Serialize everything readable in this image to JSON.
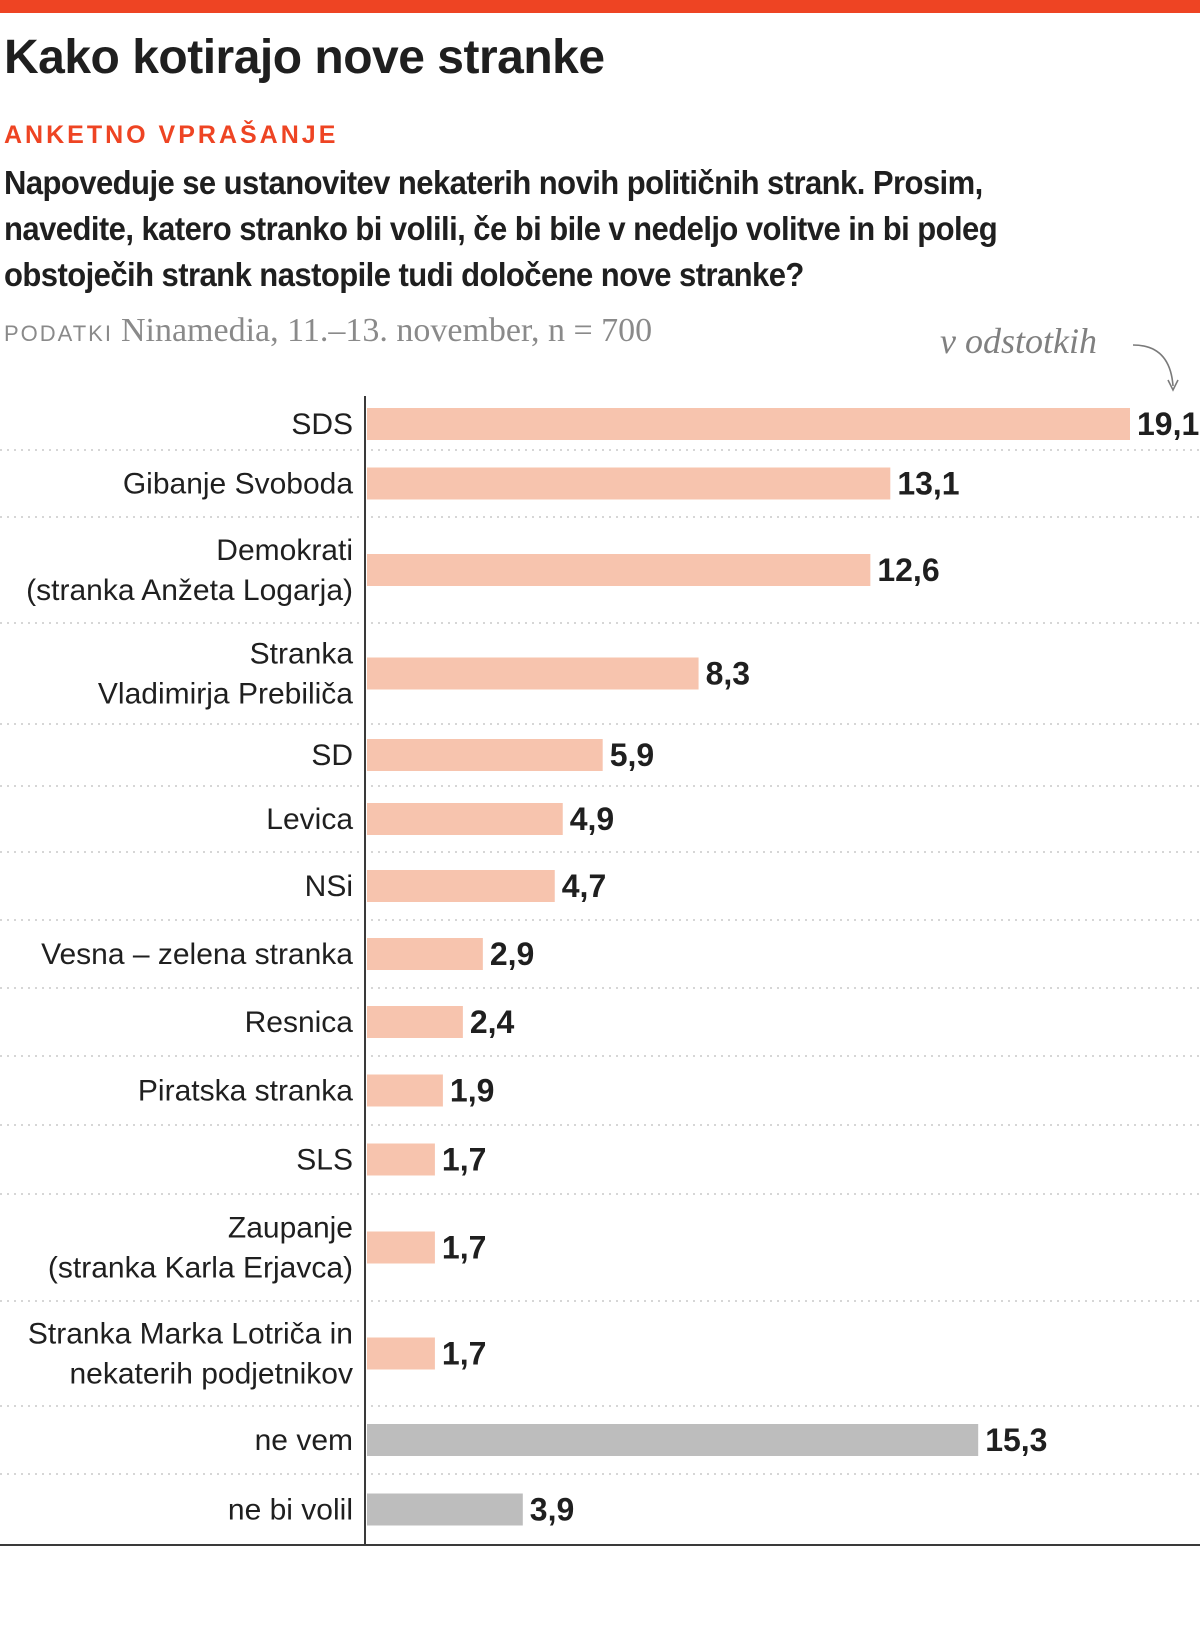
{
  "header": {
    "title": "Kako kotirajo nove stranke",
    "subhead": "ANKETNO VPRAŠANJE",
    "question": "Napoveduje se ustanovitev nekaterih novih političnih strank. Prosim, navedite, katero stranko bi volili, če bi bile v nedeljo volitve in bi poleg obstoječih strank nastopile tudi določene nove stranke?",
    "source_label": "PODATKI",
    "source_text": "Ninamedia, 11.–13. november, n = 700",
    "unit_note": "v odstotkih"
  },
  "colors": {
    "accent": "#ee4423",
    "bar": "#f7c4ae",
    "bar_muted": "#bdbdbd",
    "axis": "#3a3a3a",
    "grid": "#c8c8c8"
  },
  "chart_data": {
    "type": "bar",
    "orientation": "horizontal",
    "title": "Kako kotirajo nove stranke",
    "xlabel": "v odstotkih",
    "ylabel": "",
    "xlim": [
      0,
      19.1
    ],
    "categories": [
      [
        "SDS"
      ],
      [
        "Gibanje Svoboda"
      ],
      [
        "Demokrati",
        "(stranka Anžeta Logarja)"
      ],
      [
        "Stranka",
        "Vladimirja Prebiliča"
      ],
      [
        "SD"
      ],
      [
        "Levica"
      ],
      [
        "NSi"
      ],
      [
        "Vesna – zelena stranka"
      ],
      [
        "Resnica"
      ],
      [
        "Piratska stranka"
      ],
      [
        "SLS"
      ],
      [
        "Zaupanje",
        "(stranka Karla Erjavca)"
      ],
      [
        "Stranka Marka Lotriča in",
        "nekaterih podjetnikov"
      ],
      [
        "ne vem"
      ],
      [
        "ne bi volil"
      ]
    ],
    "values": [
      19.1,
      13.1,
      12.6,
      8.3,
      5.9,
      4.9,
      4.7,
      2.9,
      2.4,
      1.9,
      1.7,
      1.7,
      1.7,
      15.3,
      3.9
    ],
    "value_labels": [
      "19,1",
      "13,1",
      "12,6",
      "8,3",
      "5,9",
      "4,9",
      "4,7",
      "2,9",
      "2,4",
      "1,9",
      "1,7",
      "1,7",
      "1,7",
      "15,3",
      "3,9"
    ],
    "muted": [
      false,
      false,
      false,
      false,
      false,
      false,
      false,
      false,
      false,
      false,
      false,
      false,
      false,
      true,
      true
    ]
  }
}
